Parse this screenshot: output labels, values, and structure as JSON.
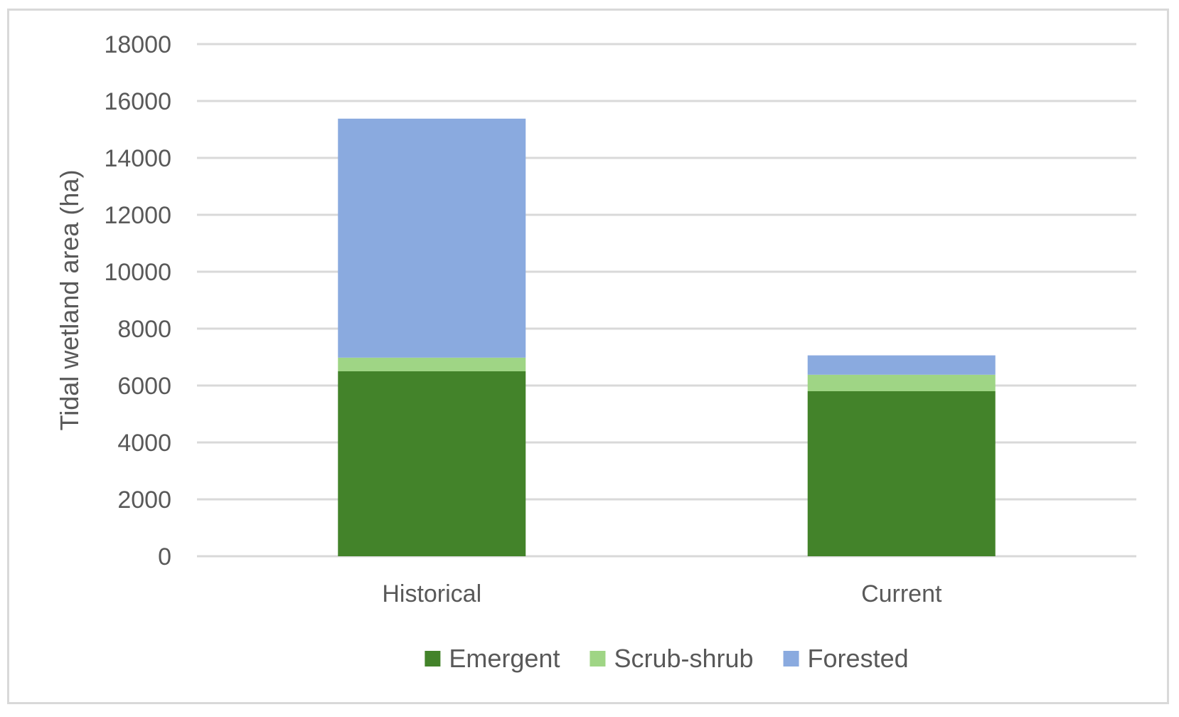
{
  "chart_data": {
    "type": "bar",
    "stacked": true,
    "categories": [
      "Historical",
      "Current"
    ],
    "series": [
      {
        "name": "Emergent",
        "color": "#43832a",
        "values": [
          6500,
          5800
        ]
      },
      {
        "name": "Scrub-shrub",
        "color": "#9fd585",
        "values": [
          480,
          580
        ]
      },
      {
        "name": "Forested",
        "color": "#8aaadf",
        "values": [
          8400,
          680
        ]
      }
    ],
    "ylabel": "Tidal wetland area (ha)",
    "xlabel": "",
    "ylim": [
      0,
      18000
    ],
    "yticks": [
      0,
      2000,
      4000,
      6000,
      8000,
      10000,
      12000,
      14000,
      16000,
      18000
    ],
    "grid": "horizontal",
    "legend_position": "bottom"
  }
}
